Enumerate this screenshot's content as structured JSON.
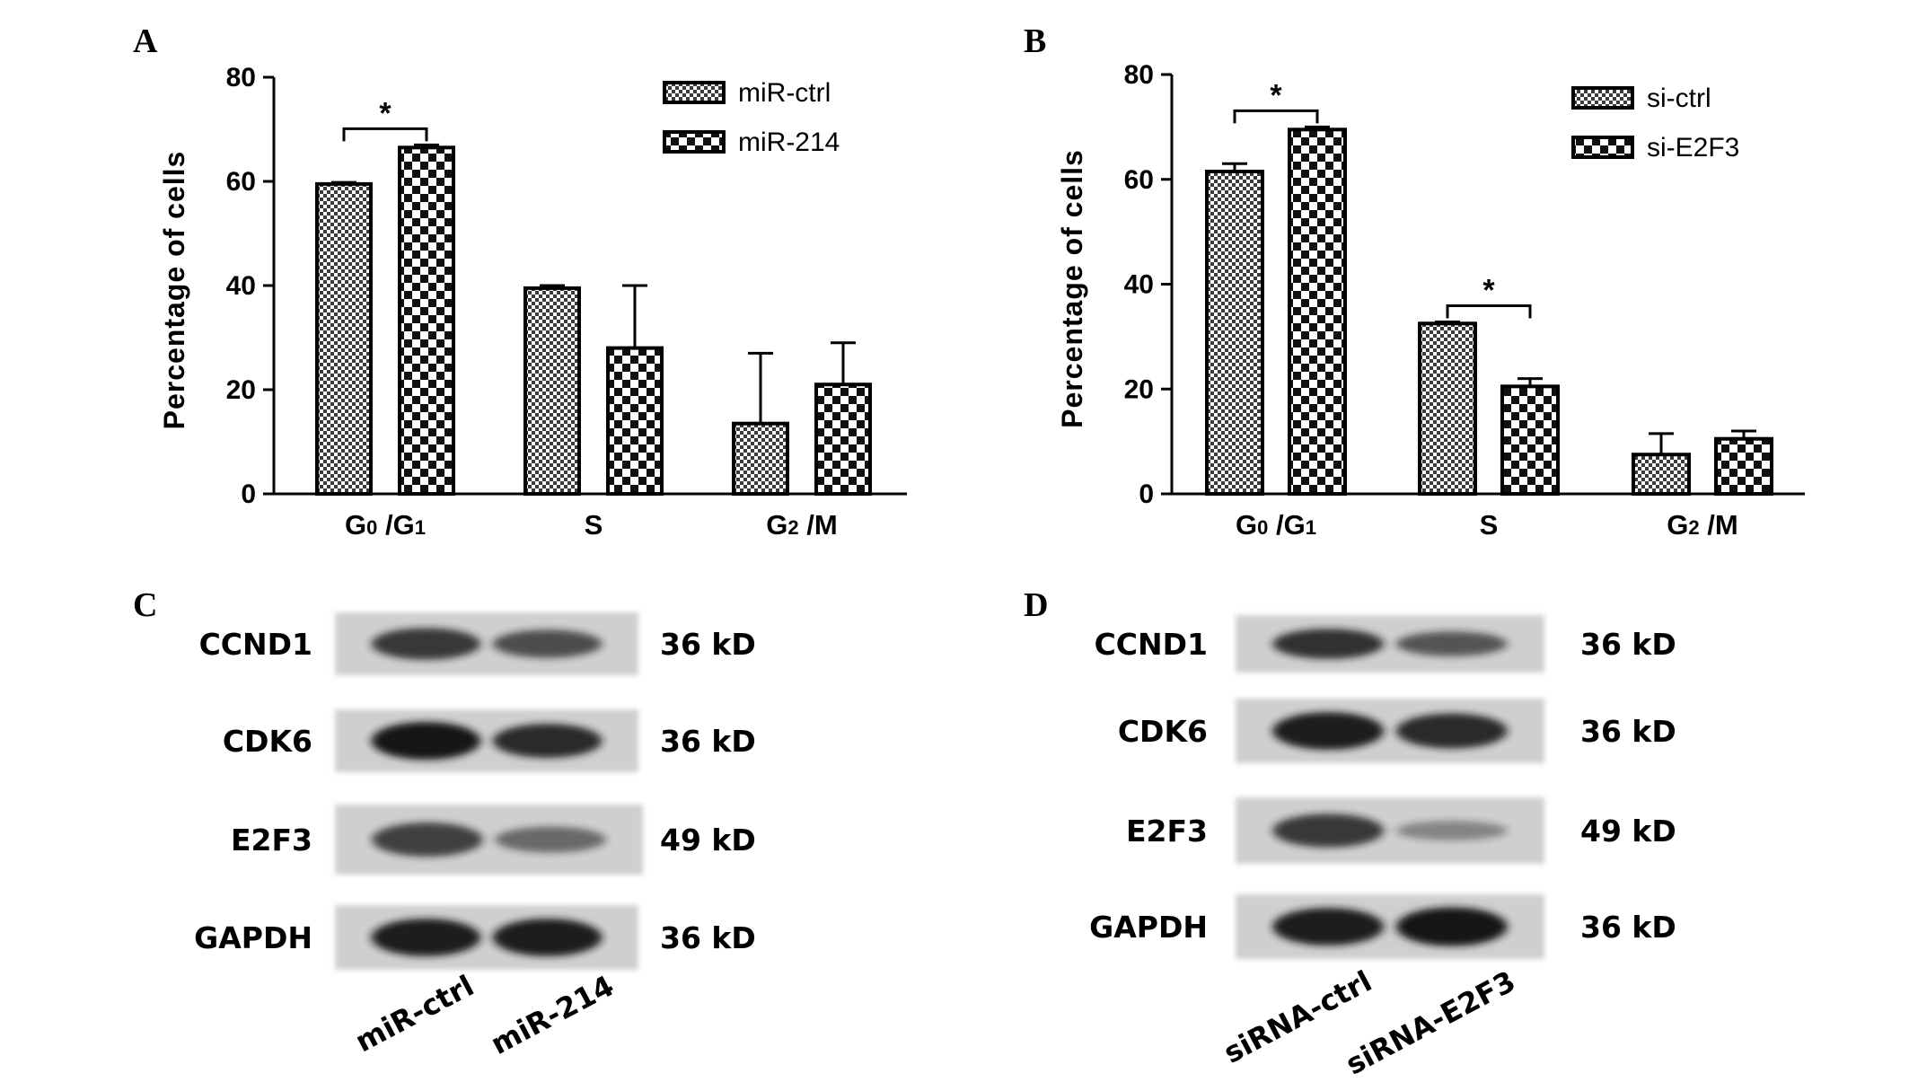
{
  "chart_data": [
    {
      "panel": "A",
      "type": "bar",
      "categories": [
        {
          "main": "G",
          "sub1": "0",
          "mid": " /G",
          "sub2": "1"
        },
        {
          "main": "S",
          "sub1": "",
          "mid": "",
          "sub2": ""
        },
        {
          "main": "G",
          "sub1": "2",
          "mid": " /M",
          "sub2": ""
        }
      ],
      "series": [
        {
          "name": "miR-ctrl",
          "values": [
            59.5,
            39.5,
            13.5
          ],
          "errors": [
            0.3,
            0.5,
            13.5
          ],
          "pattern": "fine-check"
        },
        {
          "name": "miR-214",
          "values": [
            66.5,
            28.0,
            21.0
          ],
          "errors": [
            0.5,
            12.0,
            8.0
          ],
          "pattern": "coarse-check"
        }
      ],
      "ylabel": "Percentage of cells",
      "ylim": [
        0,
        80
      ],
      "yticks": [
        "0",
        "20",
        "40",
        "60",
        "80"
      ],
      "significance": [
        {
          "category_index": 0,
          "symbol": "*"
        }
      ],
      "legend_position": "top-right",
      "grid": false
    },
    {
      "panel": "B",
      "type": "bar",
      "categories": [
        {
          "main": "G",
          "sub1": "0",
          "mid": " /G",
          "sub2": "1"
        },
        {
          "main": "S",
          "sub1": "",
          "mid": "",
          "sub2": ""
        },
        {
          "main": "G",
          "sub1": "2",
          "mid": " /M",
          "sub2": ""
        }
      ],
      "series": [
        {
          "name": "si-ctrl",
          "values": [
            61.5,
            32.5,
            7.5
          ],
          "errors": [
            1.5,
            0.3,
            4.0
          ],
          "pattern": "fine-check"
        },
        {
          "name": "si-E2F3",
          "values": [
            69.5,
            20.5,
            10.5
          ],
          "errors": [
            0.5,
            1.5,
            1.5
          ],
          "pattern": "coarse-check"
        }
      ],
      "ylabel": "Percentage of cells",
      "ylim": [
        0,
        80
      ],
      "yticks": [
        "0",
        "20",
        "40",
        "60",
        "80"
      ],
      "significance": [
        {
          "category_index": 0,
          "symbol": "*"
        },
        {
          "category_index": 1,
          "symbol": "*"
        }
      ],
      "legend_position": "top-right",
      "grid": false
    }
  ],
  "blots": [
    {
      "panel": "C",
      "rows": [
        {
          "protein": "CCND1",
          "kd": "36 kD",
          "intensity": [
            0.75,
            0.6
          ]
        },
        {
          "protein": "CDK6",
          "kd": "36 kD",
          "intensity": [
            1.0,
            0.85
          ]
        },
        {
          "protein": "E2F3",
          "kd": "49 kD",
          "intensity": [
            0.7,
            0.4
          ]
        },
        {
          "protein": "GAPDH",
          "kd": "36 kD",
          "intensity": [
            0.95,
            0.95
          ]
        }
      ],
      "lanes": [
        "miR-ctrl",
        "miR-214"
      ]
    },
    {
      "panel": "D",
      "rows": [
        {
          "protein": "CCND1",
          "kd": "36 kD",
          "intensity": [
            0.8,
            0.55
          ]
        },
        {
          "protein": "CDK6",
          "kd": "36 kD",
          "intensity": [
            0.95,
            0.85
          ]
        },
        {
          "protein": "E2F3",
          "kd": "49 kD",
          "intensity": [
            0.75,
            0.2
          ]
        },
        {
          "protein": "GAPDH",
          "kd": "36 kD",
          "intensity": [
            0.95,
            1.0
          ]
        }
      ],
      "lanes": [
        "siRNA-ctrl",
        "siRNA-E2F3"
      ]
    }
  ],
  "colors": {
    "ink": "#000000",
    "bar_light": "#ffffff",
    "bar_dark": "#222222",
    "blot_bg": "#cfcfcf",
    "band": "#141414"
  }
}
